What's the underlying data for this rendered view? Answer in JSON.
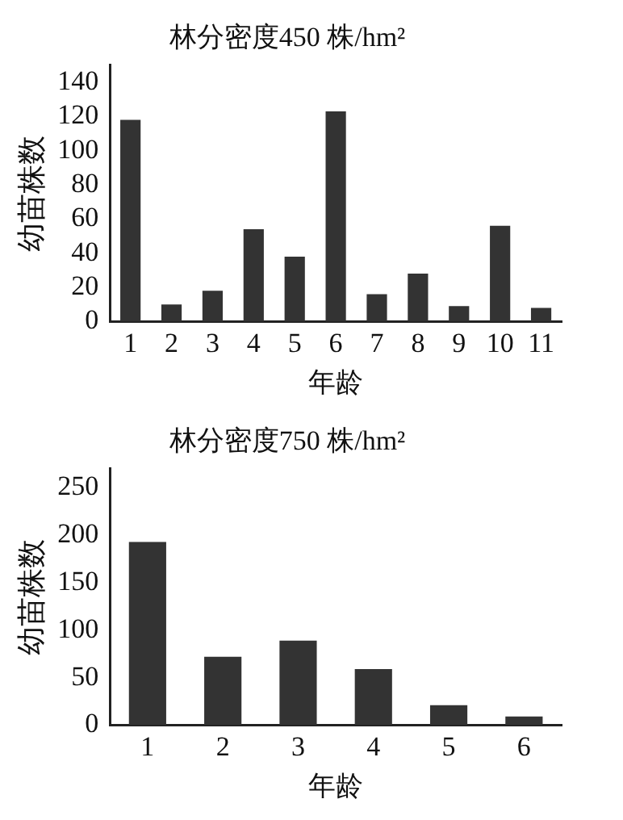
{
  "chart_data": [
    {
      "type": "bar",
      "title": "林分密度450 株/hm²",
      "xlabel": "年龄",
      "ylabel": "幼苗株数",
      "categories": [
        "1",
        "2",
        "3",
        "4",
        "5",
        "6",
        "7",
        "8",
        "9",
        "10",
        "11"
      ],
      "values": [
        118,
        10,
        18,
        54,
        38,
        123,
        16,
        28,
        9,
        56,
        8
      ],
      "color": "#333333",
      "ylim": [
        0,
        150
      ],
      "yticks": [
        0,
        20,
        40,
        60,
        80,
        100,
        120,
        140
      ],
      "grid": false,
      "legend": false
    },
    {
      "type": "bar",
      "title": "林分密度750 株/hm²",
      "xlabel": "年龄",
      "ylabel": "幼苗株数",
      "categories": [
        "1",
        "2",
        "3",
        "4",
        "5",
        "6"
      ],
      "values": [
        193,
        72,
        89,
        59,
        21,
        9
      ],
      "color": "#333333",
      "ylim": [
        0,
        270
      ],
      "yticks": [
        0,
        50,
        100,
        150,
        200,
        250
      ],
      "grid": false,
      "legend": false
    }
  ]
}
